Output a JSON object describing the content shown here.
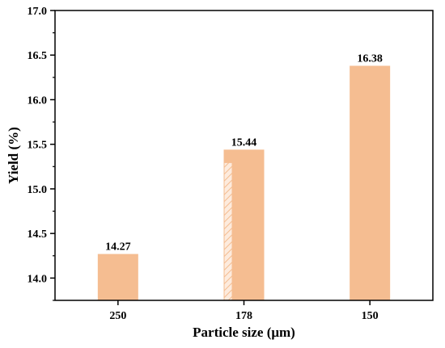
{
  "chart_data": {
    "type": "bar",
    "categories": [
      "250",
      "178",
      "150"
    ],
    "values": [
      14.27,
      15.44,
      16.38
    ],
    "value_labels": [
      "14.27",
      "15.44",
      "16.38"
    ],
    "title": "",
    "xlabel": "Particle size (μm)",
    "ylabel": "Yield (%)",
    "ylim": [
      13.75,
      17.0
    ],
    "yticks": [
      "14.0",
      "14.5",
      "15.0",
      "15.5",
      "16.0",
      "16.5",
      "17.0"
    ],
    "ytick_values": [
      14.0,
      14.5,
      15.0,
      15.5,
      16.0,
      16.5,
      17.0
    ],
    "minor_tick_step": 0.25,
    "grid": false,
    "legend": "none",
    "colors": {
      "bar": "#F5BD91",
      "hatch_fill": "#FDEBDD",
      "hatch_line": "#F5BD91",
      "axis": "#000000"
    },
    "hatched_overlay": {
      "category": "178",
      "value": 15.29
    }
  }
}
